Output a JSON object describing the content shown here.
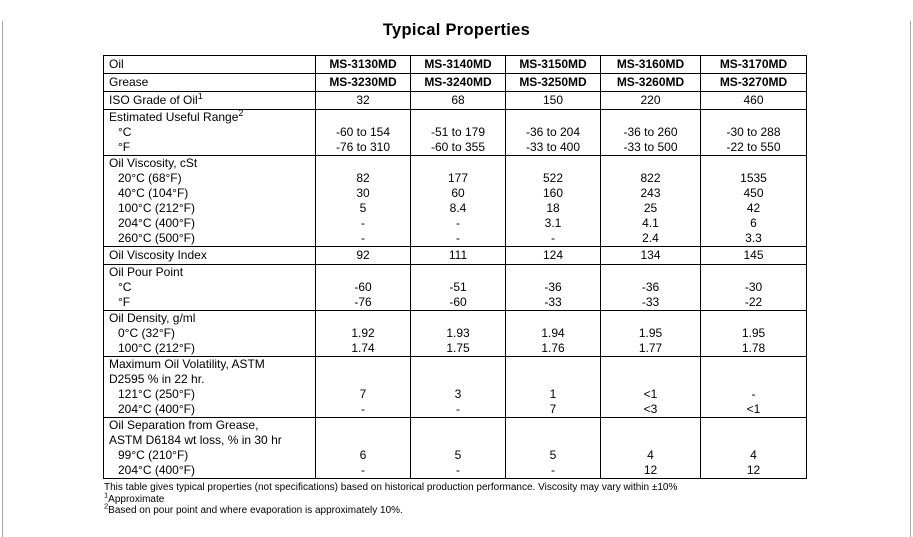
{
  "page": {
    "title": "Typical Properties",
    "footnotes": [
      {
        "sup": "",
        "text": "This table gives typical properties (not specifications) based on historical production performance. Viscosity may vary within ±10%"
      },
      {
        "sup": "1",
        "text": "Approximate"
      },
      {
        "sup": "2",
        "text": "Based on pour point and where evaporation is approximately 10%."
      }
    ]
  },
  "table": {
    "sections": [
      {
        "name": "oil-row",
        "bold_values": true,
        "lines": [
          {
            "label": "Oil",
            "values": [
              "MS-3130MD",
              "MS-3140MD",
              "MS-3150MD",
              "MS-3160MD",
              "MS-3170MD"
            ]
          }
        ]
      },
      {
        "name": "grease-row",
        "bold_values": true,
        "lines": [
          {
            "label": "Grease",
            "values": [
              "MS-3230MD",
              "MS-3240MD",
              "MS-3250MD",
              "MS-3260MD",
              "MS-3270MD"
            ]
          }
        ]
      },
      {
        "name": "iso-grade-row",
        "lines": [
          {
            "label": "ISO Grade of Oil",
            "sup": "1",
            "values": [
              "32",
              "68",
              "150",
              "220",
              "460"
            ]
          }
        ]
      },
      {
        "name": "estimated-useful-range",
        "lines": [
          {
            "label": "Estimated Useful Range",
            "sup": "2"
          },
          {
            "label": "°C",
            "indent": true,
            "values": [
              "-60 to 154",
              "-51 to 179",
              "-36 to 204",
              "-36 to 260",
              "-30 to 288"
            ]
          },
          {
            "label": "°F",
            "indent": true,
            "values": [
              "-76 to 310",
              "-60 to 355",
              "-33 to 400",
              "-33 to 500",
              "-22 to 550"
            ]
          }
        ]
      },
      {
        "name": "oil-viscosity",
        "lines": [
          {
            "label": "Oil Viscosity, cSt"
          },
          {
            "label": "20°C (68°F)",
            "indent": true,
            "values": [
              "82",
              "177",
              "522",
              "822",
              "1535"
            ]
          },
          {
            "label": "40°C (104°F)",
            "indent": true,
            "values": [
              "30",
              "60",
              "160",
              "243",
              "450"
            ]
          },
          {
            "label": "100°C (212°F)",
            "indent": true,
            "values": [
              "5",
              "8.4",
              "18",
              "25",
              "42"
            ]
          },
          {
            "label": "204°C (400°F)",
            "indent": true,
            "values": [
              "-",
              "-",
              "3.1",
              "4.1",
              "6"
            ]
          },
          {
            "label": "260°C (500°F)",
            "indent": true,
            "values": [
              "-",
              "-",
              "-",
              "2.4",
              "3.3"
            ]
          }
        ]
      },
      {
        "name": "oil-viscosity-index",
        "lines": [
          {
            "label": "Oil Viscosity Index",
            "values": [
              "92",
              "111",
              "124",
              "134",
              "145"
            ]
          }
        ]
      },
      {
        "name": "oil-pour-point",
        "lines": [
          {
            "label": "Oil Pour Point"
          },
          {
            "label": "°C",
            "indent": true,
            "values": [
              "-60",
              "-51",
              "-36",
              "-36",
              "-30"
            ]
          },
          {
            "label": "°F",
            "indent": true,
            "values": [
              "-76",
              "-60",
              "-33",
              "-33",
              "-22"
            ]
          }
        ]
      },
      {
        "name": "oil-density",
        "lines": [
          {
            "label": "Oil Density, g/ml"
          },
          {
            "label": "0°C (32°F)",
            "indent": true,
            "values": [
              "1.92",
              "1.93",
              "1.94",
              "1.95",
              "1.95"
            ]
          },
          {
            "label": "100°C (212°F)",
            "indent": true,
            "values": [
              "1.74",
              "1.75",
              "1.76",
              "1.77",
              "1.78"
            ]
          }
        ]
      },
      {
        "name": "max-oil-volatility",
        "lines": [
          {
            "label": "Maximum Oil Volatility, ASTM"
          },
          {
            "label": "D2595 % in 22 hr."
          },
          {
            "label": "121°C (250°F)",
            "indent": true,
            "values": [
              "7",
              "3",
              "1",
              "<1",
              "-"
            ]
          },
          {
            "label": "204°C (400°F)",
            "indent": true,
            "values": [
              "-",
              "-",
              "7",
              "<3",
              "<1"
            ]
          }
        ]
      },
      {
        "name": "oil-separation",
        "lines": [
          {
            "label": "Oil Separation from Grease,"
          },
          {
            "label": "ASTM D6184 wt loss, % in 30 hr"
          },
          {
            "label": "99°C (210°F)",
            "indent": true,
            "values": [
              "6",
              "5",
              "5",
              "4",
              "4"
            ]
          },
          {
            "label": "204°C (400°F)",
            "indent": true,
            "values": [
              "-",
              "-",
              "-",
              "12",
              "12"
            ]
          }
        ]
      }
    ]
  }
}
